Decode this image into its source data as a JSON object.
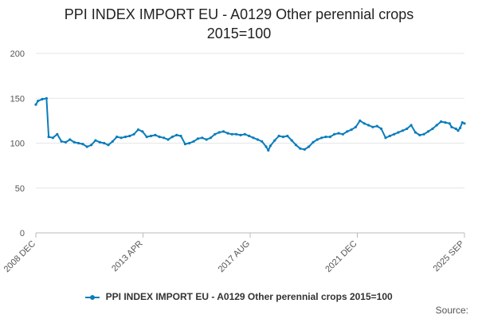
{
  "chart_data": {
    "type": "line",
    "title": "PPI INDEX IMPORT EU - A0129 Other perennial crops",
    "subtitle": "2015=100",
    "xlabel": "",
    "ylabel": "",
    "ylim": [
      0,
      200
    ],
    "yticks": [
      "0",
      "50",
      "100",
      "150",
      "200"
    ],
    "grid": true,
    "legend_position": "bottom",
    "x_tick_labels": [
      "2008 DEC",
      "2013 APR",
      "2017 AUG",
      "2021 DEC",
      "2025 SEP"
    ],
    "x_range": [
      "2008-12",
      "2025-09"
    ],
    "series": [
      {
        "name": "PPI INDEX IMPORT EU - A0129 Other perennial crops 2015=100",
        "color": "#0a7dbb",
        "points": [
          [
            "2008-12",
            143
          ],
          [
            "2009-01",
            147
          ],
          [
            "2009-03",
            149
          ],
          [
            "2009-05",
            150
          ],
          [
            "2009-06",
            107
          ],
          [
            "2009-08",
            106
          ],
          [
            "2009-10",
            110
          ],
          [
            "2009-12",
            102
          ],
          [
            "2010-02",
            101
          ],
          [
            "2010-04",
            104
          ],
          [
            "2010-06",
            101
          ],
          [
            "2010-08",
            100
          ],
          [
            "2010-10",
            99
          ],
          [
            "2010-12",
            96
          ],
          [
            "2011-02",
            98
          ],
          [
            "2011-04",
            103
          ],
          [
            "2011-06",
            101
          ],
          [
            "2011-08",
            100
          ],
          [
            "2011-10",
            98
          ],
          [
            "2011-12",
            102
          ],
          [
            "2012-02",
            107
          ],
          [
            "2012-04",
            106
          ],
          [
            "2012-06",
            107
          ],
          [
            "2012-08",
            108
          ],
          [
            "2012-10",
            110
          ],
          [
            "2012-12",
            115
          ],
          [
            "2013-02",
            113
          ],
          [
            "2013-04",
            107
          ],
          [
            "2013-06",
            108
          ],
          [
            "2013-08",
            109
          ],
          [
            "2013-10",
            107
          ],
          [
            "2013-12",
            106
          ],
          [
            "2014-02",
            104
          ],
          [
            "2014-04",
            107
          ],
          [
            "2014-06",
            109
          ],
          [
            "2014-08",
            108
          ],
          [
            "2014-10",
            99
          ],
          [
            "2014-12",
            100
          ],
          [
            "2015-02",
            102
          ],
          [
            "2015-04",
            105
          ],
          [
            "2015-06",
            106
          ],
          [
            "2015-08",
            104
          ],
          [
            "2015-10",
            106
          ],
          [
            "2015-12",
            110
          ],
          [
            "2016-02",
            112
          ],
          [
            "2016-04",
            113
          ],
          [
            "2016-06",
            111
          ],
          [
            "2016-08",
            110
          ],
          [
            "2016-10",
            110
          ],
          [
            "2016-12",
            109
          ],
          [
            "2017-02",
            110
          ],
          [
            "2017-04",
            108
          ],
          [
            "2017-06",
            106
          ],
          [
            "2017-08",
            104
          ],
          [
            "2017-10",
            102
          ],
          [
            "2017-12",
            96
          ],
          [
            "2018-01",
            92
          ],
          [
            "2018-02",
            97
          ],
          [
            "2018-04",
            103
          ],
          [
            "2018-06",
            108
          ],
          [
            "2018-08",
            107
          ],
          [
            "2018-10",
            108
          ],
          [
            "2018-12",
            103
          ],
          [
            "2019-02",
            98
          ],
          [
            "2019-04",
            94
          ],
          [
            "2019-06",
            93
          ],
          [
            "2019-08",
            96
          ],
          [
            "2019-10",
            101
          ],
          [
            "2019-12",
            104
          ],
          [
            "2020-02",
            106
          ],
          [
            "2020-04",
            107
          ],
          [
            "2020-06",
            107
          ],
          [
            "2020-08",
            110
          ],
          [
            "2020-10",
            111
          ],
          [
            "2020-12",
            110
          ],
          [
            "2021-02",
            113
          ],
          [
            "2021-04",
            115
          ],
          [
            "2021-06",
            118
          ],
          [
            "2021-08",
            125
          ],
          [
            "2021-10",
            122
          ],
          [
            "2021-12",
            120
          ],
          [
            "2022-02",
            118
          ],
          [
            "2022-04",
            119
          ],
          [
            "2022-06",
            116
          ],
          [
            "2022-08",
            106
          ],
          [
            "2022-10",
            108
          ],
          [
            "2022-12",
            110
          ],
          [
            "2023-02",
            112
          ],
          [
            "2023-04",
            114
          ],
          [
            "2023-06",
            116
          ],
          [
            "2023-08",
            120
          ],
          [
            "2023-10",
            112
          ],
          [
            "2023-12",
            109
          ],
          [
            "2024-02",
            110
          ],
          [
            "2024-04",
            113
          ],
          [
            "2024-06",
            116
          ],
          [
            "2024-08",
            120
          ],
          [
            "2024-10",
            124
          ],
          [
            "2024-12",
            123
          ],
          [
            "2025-02",
            122
          ],
          [
            "2025-03",
            118
          ],
          [
            "2025-05",
            116
          ],
          [
            "2025-06",
            114
          ],
          [
            "2025-07",
            117
          ],
          [
            "2025-08",
            123
          ],
          [
            "2025-09",
            122
          ]
        ]
      }
    ]
  },
  "legend_label": "PPI INDEX IMPORT EU - A0129 Other perennial crops 2015=100",
  "source_label": "Source:"
}
